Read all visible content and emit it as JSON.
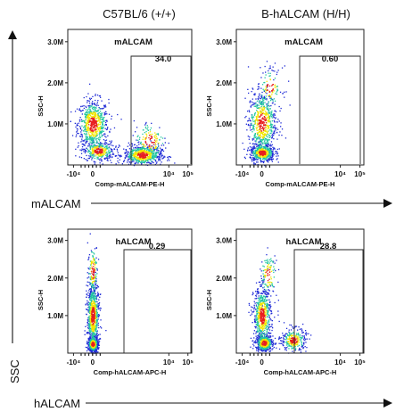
{
  "columns": [
    "C57BL/6 (+/+)",
    "B-hALCAM (H/H)"
  ],
  "row_labels": [
    "mALCAM",
    "hALCAM"
  ],
  "y_axis_label": "SSC",
  "colors": {
    "low": "#1f2bd6",
    "mid": "#22c7a0",
    "high": "#f2e600",
    "peak": "#e81e1e"
  },
  "chart_data": [
    {
      "type": "scatter",
      "title": "mALCAM",
      "gate_value": "34.0",
      "xlabel": "Comp-mALCAM-PE-H",
      "ylabel": "SSC-H",
      "x_ticks": [
        "-10⁴",
        "0",
        "10⁴",
        "10⁵"
      ],
      "y_ticks": [
        "1.0M",
        "2.0M",
        "3.0M"
      ],
      "ylim": [
        0,
        3300000
      ],
      "populations": [
        {
          "x": 0.0,
          "y": 1000000,
          "count": 700,
          "sx": 0.9,
          "sy": 300000
        },
        {
          "x": 0.3,
          "y": 350000,
          "count": 350,
          "sx": 0.9,
          "sy": 120000
        },
        {
          "x": 2.6,
          "y": 250000,
          "count": 650,
          "sx": 1.1,
          "sy": 120000
        },
        {
          "x": 3.0,
          "y": 600000,
          "count": 150,
          "sx": 1.0,
          "sy": 250000
        }
      ]
    },
    {
      "type": "scatter",
      "title": "mALCAM",
      "gate_value": "0.60",
      "xlabel": "Comp-mALCAM-PE-H",
      "ylabel": "SSC-H",
      "x_ticks": [
        "-10⁴",
        "0",
        "10⁴",
        "10⁵"
      ],
      "y_ticks": [
        "1.0M",
        "2.0M",
        "3.0M"
      ],
      "ylim": [
        0,
        3300000
      ],
      "populations": [
        {
          "x": 0.0,
          "y": 1050000,
          "count": 650,
          "sx": 0.8,
          "sy": 380000
        },
        {
          "x": 0.0,
          "y": 300000,
          "count": 500,
          "sx": 0.7,
          "sy": 110000
        },
        {
          "x": 0.4,
          "y": 1900000,
          "count": 120,
          "sx": 0.7,
          "sy": 250000
        }
      ]
    },
    {
      "type": "scatter",
      "title": "hALCAM",
      "gate_value": "0.29",
      "xlabel": "Comp-hALCAM-APC-H",
      "ylabel": "SSC-H",
      "x_ticks": [
        "-10⁴",
        "0",
        "10⁴",
        "10⁵"
      ],
      "y_ticks": [
        "1.0M",
        "2.0M",
        "3.0M"
      ],
      "ylim": [
        0,
        3300000
      ],
      "populations": [
        {
          "x": 0.0,
          "y": 1000000,
          "count": 700,
          "sx": 0.35,
          "sy": 420000
        },
        {
          "x": 0.0,
          "y": 250000,
          "count": 500,
          "sx": 0.3,
          "sy": 100000
        },
        {
          "x": 0.0,
          "y": 2200000,
          "count": 150,
          "sx": 0.3,
          "sy": 350000
        }
      ]
    },
    {
      "type": "scatter",
      "title": "hALCAM",
      "gate_value": "28.8",
      "xlabel": "Comp-hALCAM-APC-H",
      "ylabel": "SSC-H",
      "x_ticks": [
        "-10⁴",
        "0",
        "10⁴",
        "10⁵"
      ],
      "y_ticks": [
        "1.0M",
        "2.0M",
        "3.0M"
      ],
      "ylim": [
        0,
        3300000
      ],
      "populations": [
        {
          "x": 0.0,
          "y": 1000000,
          "count": 650,
          "sx": 0.5,
          "sy": 380000
        },
        {
          "x": 0.1,
          "y": 280000,
          "count": 450,
          "sx": 0.5,
          "sy": 110000
        },
        {
          "x": 1.6,
          "y": 350000,
          "count": 300,
          "sx": 0.7,
          "sy": 160000
        },
        {
          "x": 0.3,
          "y": 2100000,
          "count": 120,
          "sx": 0.5,
          "sy": 300000
        }
      ]
    }
  ]
}
